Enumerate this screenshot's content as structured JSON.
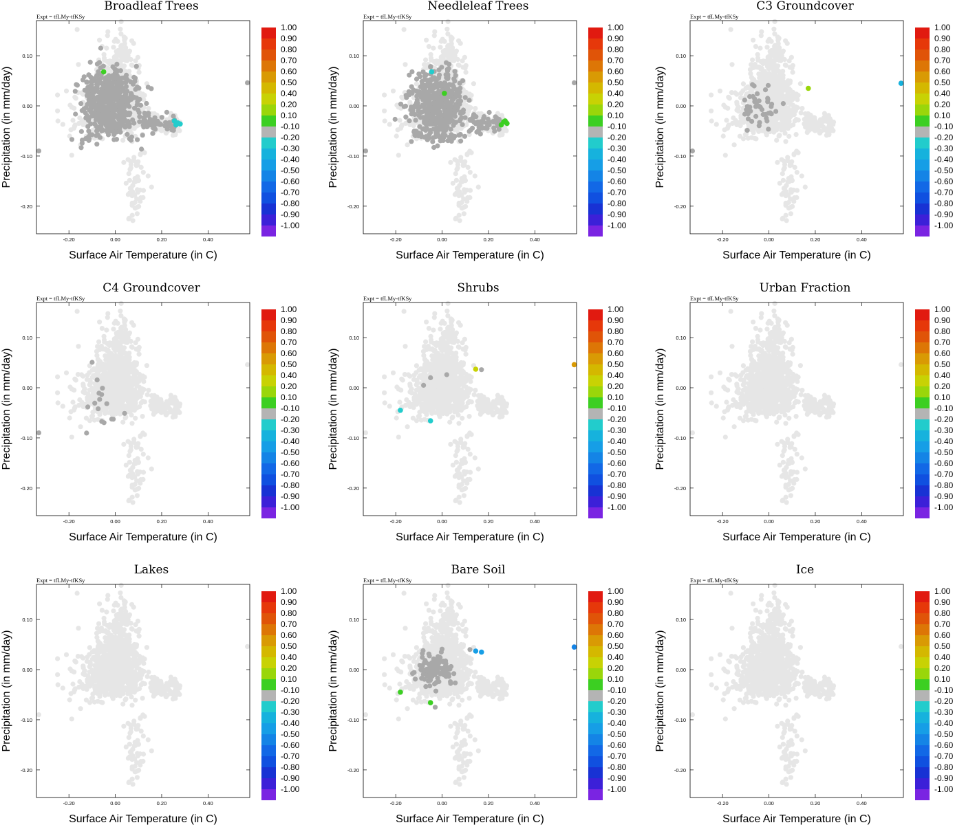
{
  "chart_data": {
    "type": "scatter",
    "shared": {
      "expt_label": "Expt = tfLMy-tfKSy",
      "xlabel": "Surface Air Temperature (in C)",
      "ylabel": "Precipitation (in mm/day)",
      "xlim": [
        -0.34,
        0.58
      ],
      "ylim": [
        -0.255,
        0.17
      ],
      "xticks": [
        -0.2,
        0.0,
        0.2,
        0.4
      ],
      "xtick_labels": [
        "-0.20",
        "0.00",
        "0.20",
        "0.40"
      ],
      "yticks": [
        -0.2,
        -0.1,
        0.0,
        0.1
      ],
      "ytick_labels": [
        "-0.20",
        "-0.10",
        "0.00",
        "0.10"
      ],
      "colorbar_labels": [
        "1.00",
        "0.90",
        "0.80",
        "0.70",
        "0.60",
        "0.50",
        "0.40",
        "0.20",
        "0.10",
        "-0.10",
        "-0.20",
        "-0.30",
        "-0.40",
        "-0.50",
        "-0.60",
        "-0.70",
        "-0.80",
        "-0.90",
        "-1.00"
      ],
      "colorbar_colors": [
        "#e11a10",
        "#e6380a",
        "#e05408",
        "#dd7606",
        "#d99a04",
        "#d4b800",
        "#c8d204",
        "#9ad60a",
        "#3ccf22",
        "#b4b4b4",
        "#22cccc",
        "#16b2dd",
        "#169ee6",
        "#1484e6",
        "#1268e6",
        "#1050e0",
        "#1832d4",
        "#3c20d8",
        "#7a24e2"
      ],
      "background_point_color": "#e6e6e6",
      "neutral_point_color": "#a8a8a8"
    },
    "panels": [
      {
        "title": "Broadleaf Trees",
        "highlight_points": [
          {
            "x": -0.05,
            "y": 0.068,
            "value": 0.1
          },
          {
            "x": 0.27,
            "y": -0.034,
            "value": -0.2
          },
          {
            "x": 0.255,
            "y": -0.03,
            "value": -0.2
          },
          {
            "x": 0.262,
            "y": -0.038,
            "value": -0.2
          },
          {
            "x": 0.28,
            "y": -0.036,
            "value": -0.2
          }
        ]
      },
      {
        "title": "Needleleaf Trees",
        "highlight_points": [
          {
            "x": 0.01,
            "y": 0.025,
            "value": 0.1
          },
          {
            "x": 0.265,
            "y": -0.032,
            "value": 0.1
          },
          {
            "x": 0.255,
            "y": -0.038,
            "value": 0.1
          },
          {
            "x": 0.28,
            "y": -0.035,
            "value": 0.1
          },
          {
            "x": 0.272,
            "y": -0.03,
            "value": 0.1
          },
          {
            "x": -0.045,
            "y": 0.068,
            "value": -0.2
          }
        ]
      },
      {
        "title": "C3 Groundcover",
        "highlight_points": [
          {
            "x": 0.17,
            "y": 0.035,
            "value": 0.2
          },
          {
            "x": 0.57,
            "y": 0.045,
            "value": -0.3
          }
        ]
      },
      {
        "title": "C4 Groundcover",
        "highlight_points": []
      },
      {
        "title": "Shrubs",
        "highlight_points": [
          {
            "x": 0.145,
            "y": 0.037,
            "value": 0.4
          },
          {
            "x": 0.57,
            "y": 0.046,
            "value": 0.6
          },
          {
            "x": -0.18,
            "y": -0.045,
            "value": -0.2
          },
          {
            "x": -0.05,
            "y": -0.066,
            "value": -0.2
          }
        ]
      },
      {
        "title": "Urban Fraction",
        "highlight_points": []
      },
      {
        "title": "Lakes",
        "highlight_points": []
      },
      {
        "title": "Bare Soil",
        "highlight_points": [
          {
            "x": -0.18,
            "y": -0.045,
            "value": 0.1
          },
          {
            "x": -0.05,
            "y": -0.066,
            "value": 0.1
          },
          {
            "x": 0.145,
            "y": 0.037,
            "value": -0.4
          },
          {
            "x": 0.17,
            "y": 0.035,
            "value": -0.4
          },
          {
            "x": 0.57,
            "y": 0.045,
            "value": -0.5
          }
        ]
      },
      {
        "title": "Ice",
        "highlight_points": []
      }
    ]
  }
}
